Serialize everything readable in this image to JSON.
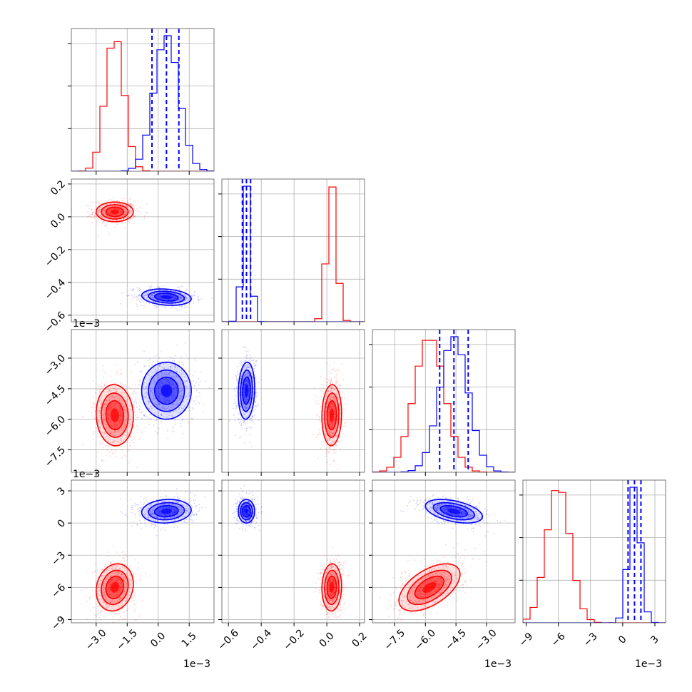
{
  "chart_data": {
    "type": "corner",
    "title": "",
    "parameters": [
      {
        "ticks": [
          -3.0,
          -1.5,
          0.0,
          1.5
        ],
        "tick_labels": [
          "−3.0",
          "−1.5",
          "0.0",
          "1.5"
        ],
        "range": [
          -4.2,
          2.7
        ],
        "scale_label": "1e−3",
        "unit": 0.001
      },
      {
        "ticks": [
          -0.6,
          -0.4,
          -0.2,
          0.0,
          0.2
        ],
        "tick_labels": [
          "−0.6",
          "−0.4",
          "−0.2",
          "0.0",
          "0.2"
        ],
        "range": [
          -0.64,
          0.23
        ],
        "scale_label": "",
        "unit": 1
      },
      {
        "ticks": [
          -7.5,
          -6.0,
          -4.5,
          -3.0
        ],
        "tick_labels": [
          "−7.5",
          "−6.0",
          "−4.5",
          "−3.0"
        ],
        "range": [
          -8.6,
          -1.6
        ],
        "scale_label": "1e−3",
        "unit": 0.001
      },
      {
        "ticks": [
          -9,
          -6,
          -3,
          0,
          3
        ],
        "tick_labels": [
          "−9",
          "−6",
          "−3",
          "0",
          "3"
        ],
        "range": [
          -9.3,
          4.0
        ],
        "scale_label": "1e−3",
        "unit": 0.001
      }
    ],
    "series": [
      {
        "color": "#ff0000",
        "mean": [
          -2.1,
          0.03,
          -5.8,
          -6.0
        ],
        "std": [
          0.45,
          0.03,
          0.75,
          1.1
        ],
        "corr": [
          [
            0,
            0,
            -0.05,
            0.15
          ],
          [
            0,
            0,
            0.05,
            0.05
          ],
          [
            -0.05,
            0.05,
            0,
            0.55
          ],
          [
            0.15,
            0.05,
            0.55,
            0
          ]
        ],
        "quantiles": null
      },
      {
        "color": "#0000ff",
        "mean": [
          0.4,
          -0.49,
          -4.6,
          1.1
        ],
        "std": [
          0.6,
          0.025,
          0.7,
          0.55
        ],
        "corr": [
          [
            0,
            -0.2,
            0,
            0.1
          ],
          [
            -0.2,
            0,
            0.1,
            0
          ],
          [
            0,
            0.1,
            0,
            -0.45
          ],
          [
            0.1,
            0,
            -0.45,
            0
          ]
        ],
        "quantiles": [
          [
            -0.3,
            0.4,
            1.0
          ],
          [
            -0.515,
            -0.49,
            -0.465
          ],
          [
            -5.3,
            -4.6,
            -3.9
          ],
          [
            0.5,
            1.1,
            1.7
          ]
        ]
      }
    ],
    "grid": true,
    "legend": "none"
  }
}
